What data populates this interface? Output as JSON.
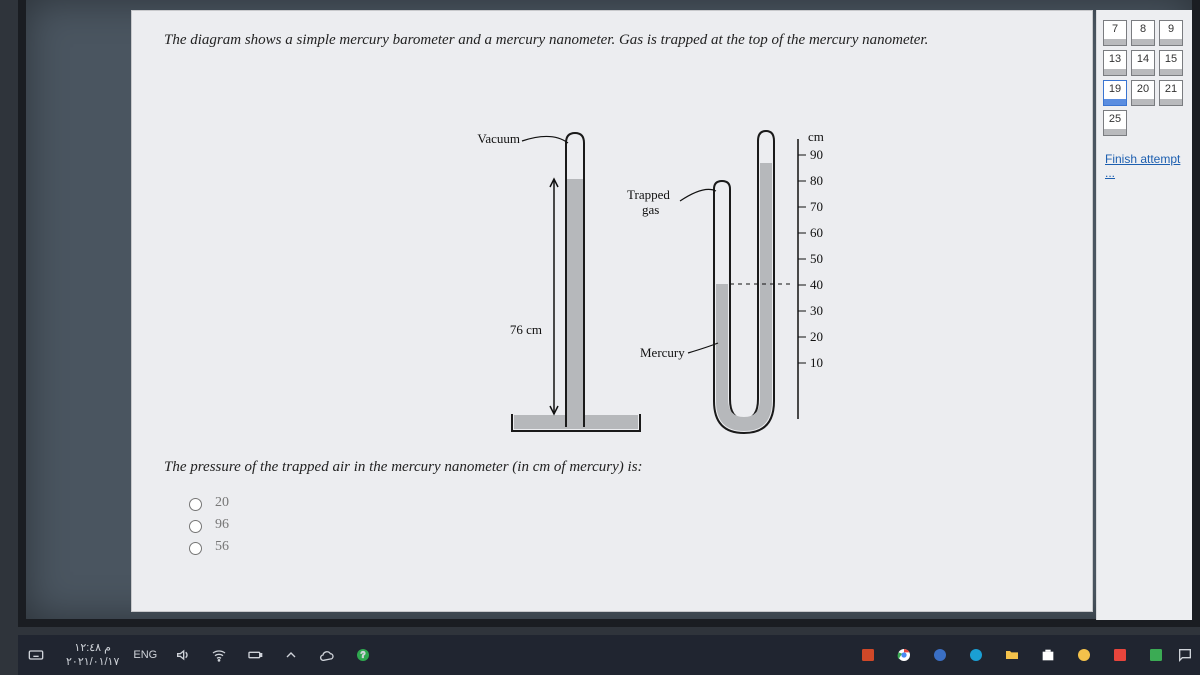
{
  "question": {
    "intro": "The diagram shows a simple mercury barometer and a mercury nanometer. Gas is trapped at the top of the mercury nanometer.",
    "sub": "The pressure of the trapped air in the mercury nanometer (in cm of mercury) is:",
    "options": [
      "20",
      "96",
      "56"
    ]
  },
  "diagram": {
    "vacuum_label": "Vacuum",
    "trapped_label": "Trapped\ngas",
    "mercury_label": "Mercury",
    "height_label": "76 cm",
    "ruler_unit": "cm",
    "ruler_ticks": [
      90,
      80,
      70,
      60,
      50,
      40,
      30,
      20,
      10
    ],
    "barometer_mercury_from": 0,
    "barometer_mercury_to": 76,
    "manometer_left_from": 0,
    "manometer_left_to": 40,
    "manometer_right_from": 0,
    "manometer_right_to": 80,
    "colors": {
      "mercury": "#b6b8bb",
      "line": "#1a1a1a"
    }
  },
  "nav": {
    "rows": [
      [
        7,
        8,
        9
      ],
      [
        13,
        14,
        15
      ],
      [
        19,
        20,
        21
      ],
      [
        25
      ]
    ],
    "current": 19,
    "finish": "Finish attempt ..."
  },
  "taskbar": {
    "time": "م ١٢:٤٨",
    "date": "٢٠٢١/٠١/١٧",
    "lang": "ENG"
  }
}
